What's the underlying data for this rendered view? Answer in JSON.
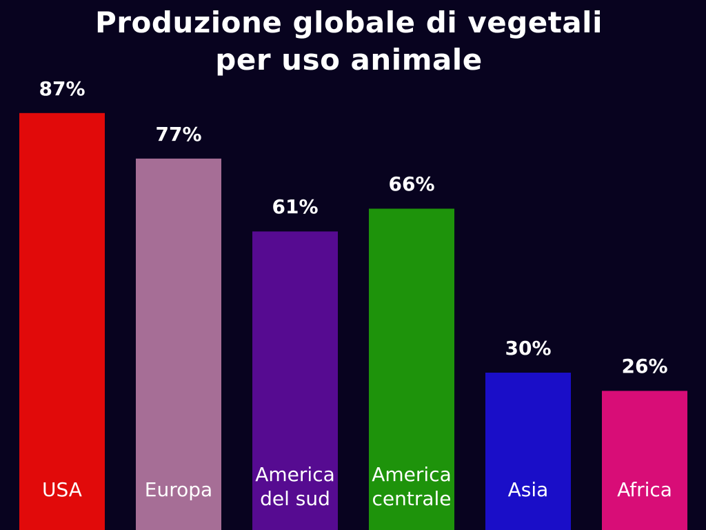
{
  "chart_data": {
    "type": "bar",
    "title_lines": [
      "Produzione globale di vegetali",
      "per uso animale"
    ],
    "categories": [
      [
        "USA"
      ],
      [
        "Europa"
      ],
      [
        "America",
        "del sud"
      ],
      [
        "America",
        "centrale"
      ],
      [
        "Asia"
      ],
      [
        "Africa"
      ]
    ],
    "values": [
      87,
      77,
      61,
      66,
      30,
      26
    ],
    "value_labels": [
      "87%",
      "77%",
      "61%",
      "66%",
      "30%",
      "26%"
    ],
    "colors": [
      "#e10a0a",
      "#a66e96",
      "#560b91",
      "#1e930b",
      "#1a0ec8",
      "#d80d77"
    ],
    "background": "#08031f",
    "xlabel": "",
    "ylabel": "",
    "grid": false,
    "axes_visible": false
  }
}
